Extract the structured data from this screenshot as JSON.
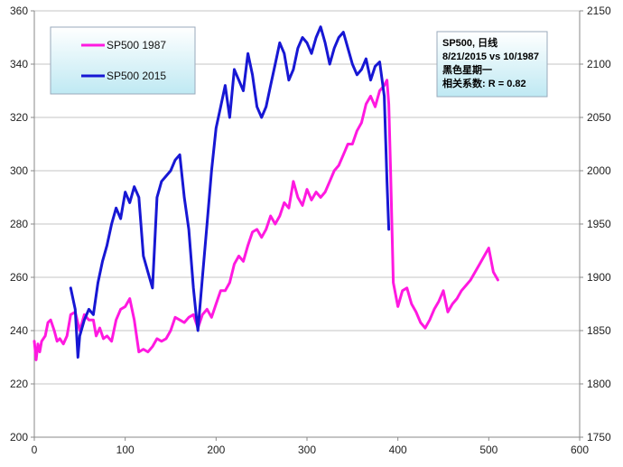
{
  "chart_data": {
    "type": "line",
    "title": "",
    "xlabel": "",
    "ylabel": "",
    "xlim": [
      0,
      600
    ],
    "ylim": [
      200,
      360
    ],
    "y2lim": [
      1750,
      2150
    ],
    "x_ticks": [
      0,
      100,
      200,
      300,
      400,
      500,
      600
    ],
    "x_tick_labels": [
      "0",
      "100",
      "200",
      "300",
      "400",
      "500",
      "600"
    ],
    "y_ticks": [
      200,
      220,
      240,
      260,
      280,
      300,
      320,
      340,
      360
    ],
    "y_tick_labels": [
      "200",
      "220",
      "240",
      "260",
      "280",
      "300",
      "320",
      "340",
      "360"
    ],
    "y2_ticks": [
      1750,
      1800,
      1850,
      1900,
      1950,
      2000,
      2050,
      2100,
      2150
    ],
    "y2_tick_labels": [
      "1750",
      "1800",
      "1850",
      "1900",
      "1950",
      "2000",
      "2050",
      "2100",
      "2150"
    ],
    "grid": "horizontal",
    "legend_position": "top-left",
    "annotation": [
      "SP500, 日线",
      "8/21/2015 vs 10/1987",
      "黑色星期一",
      "相关系数: R = 0.82"
    ],
    "series": [
      {
        "name": "SP500 1987",
        "color": "#ff19e0",
        "axis": "left",
        "x": [
          0,
          2,
          4,
          6,
          8,
          12,
          15,
          18,
          22,
          25,
          28,
          32,
          36,
          40,
          45,
          50,
          55,
          60,
          65,
          68,
          72,
          76,
          80,
          85,
          90,
          95,
          100,
          105,
          110,
          115,
          120,
          125,
          130,
          135,
          140,
          145,
          150,
          155,
          160,
          165,
          170,
          175,
          180,
          185,
          190,
          195,
          200,
          205,
          210,
          215,
          220,
          225,
          230,
          235,
          240,
          245,
          250,
          255,
          260,
          265,
          270,
          275,
          280,
          285,
          290,
          295,
          300,
          305,
          310,
          315,
          320,
          325,
          330,
          335,
          340,
          345,
          350,
          355,
          360,
          365,
          370,
          375,
          380,
          385,
          388,
          390,
          392,
          395,
          400,
          405,
          410,
          415,
          420,
          425,
          430,
          435,
          440,
          445,
          450,
          455,
          460,
          465,
          470,
          475,
          480,
          485,
          490,
          495,
          500,
          505,
          510
        ],
        "values": [
          236,
          229,
          235,
          232,
          236,
          238,
          243,
          244,
          240,
          236,
          237,
          235,
          238,
          246,
          247,
          240,
          246,
          244,
          244,
          238,
          241,
          237,
          238,
          236,
          244,
          248,
          249,
          252,
          244,
          232,
          233,
          232,
          234,
          237,
          236,
          237,
          240,
          245,
          244,
          243,
          245,
          246,
          241,
          246,
          248,
          245,
          250,
          255,
          255,
          258,
          265,
          268,
          266,
          272,
          277,
          278,
          275,
          278,
          283,
          280,
          283,
          288,
          286,
          296,
          290,
          287,
          293,
          289,
          292,
          290,
          292,
          296,
          300,
          302,
          306,
          310,
          310,
          315,
          318,
          325,
          328,
          324,
          330,
          332,
          334,
          325,
          300,
          258,
          249,
          255,
          256,
          250,
          247,
          243,
          241,
          244,
          248,
          251,
          255,
          247,
          250,
          252,
          255,
          257,
          259,
          262,
          265,
          268,
          271,
          262,
          259
        ]
      },
      {
        "name": "SP500 2015",
        "color": "#1717d4",
        "axis": "right",
        "x": [
          40,
          45,
          48,
          50,
          55,
          60,
          65,
          70,
          75,
          80,
          85,
          90,
          95,
          100,
          105,
          110,
          115,
          120,
          125,
          130,
          135,
          140,
          145,
          150,
          155,
          160,
          165,
          170,
          175,
          178,
          180,
          182,
          185,
          190,
          195,
          200,
          205,
          210,
          215,
          220,
          225,
          230,
          235,
          240,
          245,
          250,
          255,
          260,
          265,
          270,
          275,
          280,
          285,
          290,
          295,
          300,
          305,
          310,
          315,
          320,
          325,
          330,
          335,
          340,
          345,
          350,
          355,
          360,
          365,
          370,
          375,
          380,
          385,
          388,
          390
        ],
        "values": [
          1890,
          1870,
          1825,
          1845,
          1860,
          1870,
          1865,
          1895,
          1915,
          1930,
          1950,
          1965,
          1955,
          1980,
          1970,
          1985,
          1975,
          1920,
          1905,
          1890,
          1975,
          1990,
          1995,
          2000,
          2010,
          2015,
          1975,
          1945,
          1890,
          1865,
          1850,
          1870,
          1900,
          1950,
          2000,
          2040,
          2060,
          2080,
          2050,
          2095,
          2085,
          2075,
          2110,
          2090,
          2060,
          2050,
          2060,
          2080,
          2100,
          2120,
          2110,
          2085,
          2095,
          2115,
          2125,
          2120,
          2110,
          2125,
          2135,
          2120,
          2100,
          2115,
          2125,
          2130,
          2115,
          2100,
          2090,
          2095,
          2105,
          2085,
          2098,
          2102,
          2070,
          1990,
          1945
        ]
      }
    ]
  }
}
